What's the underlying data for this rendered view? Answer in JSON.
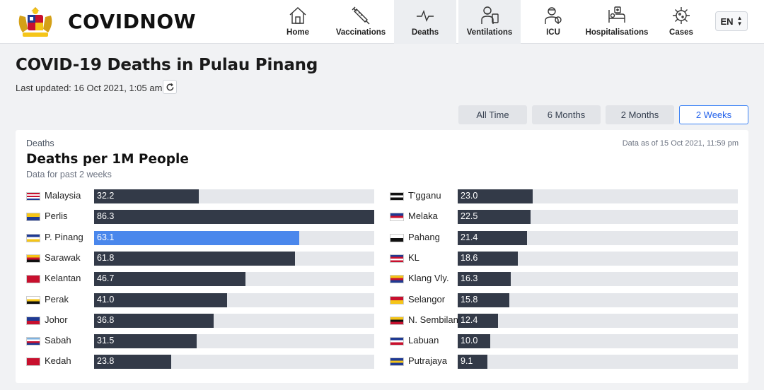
{
  "header": {
    "brand": "COVIDNOW",
    "nav": [
      {
        "label": "Home",
        "icon": "home-icon",
        "active": false
      },
      {
        "label": "Vaccinations",
        "icon": "syringe-icon",
        "active": false
      },
      {
        "label": "Deaths",
        "icon": "pulse-icon",
        "active": true
      },
      {
        "label": "Ventilations",
        "icon": "ventilator-icon",
        "active": true
      },
      {
        "label": "ICU",
        "icon": "icu-doctor-icon",
        "active": false
      },
      {
        "label": "Hospitalisations",
        "icon": "hospital-bed-icon",
        "active": false
      },
      {
        "label": "Cases",
        "icon": "virus-icon",
        "active": false
      }
    ],
    "language": "EN"
  },
  "page": {
    "title": "COVID-19 Deaths in Pulau Pinang",
    "updated": "Last updated: 16 Oct 2021, 1:05 am"
  },
  "ranges": [
    {
      "label": "All Time",
      "active": false
    },
    {
      "label": "6 Months",
      "active": false
    },
    {
      "label": "2 Months",
      "active": false
    },
    {
      "label": "2 Weeks",
      "active": true
    }
  ],
  "card": {
    "label": "Deaths",
    "title": "Deaths per 1M People",
    "subtitle": "Data for past 2 weeks",
    "data_as_of": "Data as of 15 Oct 2021, 11:59 pm"
  },
  "colors": {
    "bar": "#333a48",
    "highlight": "#4a87ec",
    "track": "#e5e7eb",
    "active_tab": "#2563eb"
  },
  "chart_data": {
    "type": "bar",
    "title": "Deaths per 1M People",
    "xlim": [
      0,
      86.3
    ],
    "highlight": "P. Pinang",
    "left": [
      {
        "name": "Malaysia",
        "value": 32.2
      },
      {
        "name": "Perlis",
        "value": 86.3
      },
      {
        "name": "P. Pinang",
        "value": 63.1
      },
      {
        "name": "Sarawak",
        "value": 61.8
      },
      {
        "name": "Kelantan",
        "value": 46.7
      },
      {
        "name": "Perak",
        "value": 41.0
      },
      {
        "name": "Johor",
        "value": 36.8
      },
      {
        "name": "Sabah",
        "value": 31.5
      },
      {
        "name": "Kedah",
        "value": 23.8
      }
    ],
    "right": [
      {
        "name": "T'gganu",
        "value": 23.0
      },
      {
        "name": "Melaka",
        "value": 22.5
      },
      {
        "name": "Pahang",
        "value": 21.4
      },
      {
        "name": "KL",
        "value": 18.6
      },
      {
        "name": "Klang Vly.",
        "value": 16.3
      },
      {
        "name": "Selangor",
        "value": 15.8
      },
      {
        "name": "N. Sembilan",
        "value": 12.4
      },
      {
        "name": "Labuan",
        "value": 10.0
      },
      {
        "name": "Putrajaya",
        "value": 9.1
      }
    ]
  }
}
